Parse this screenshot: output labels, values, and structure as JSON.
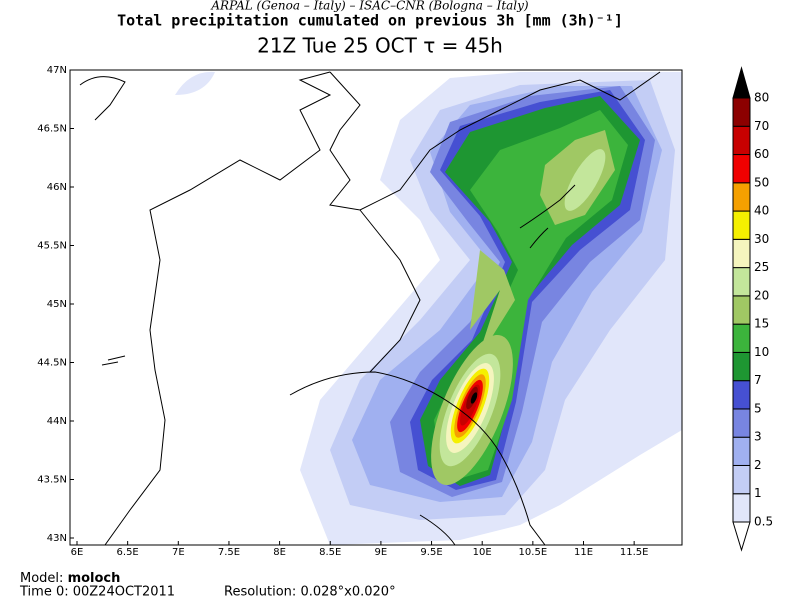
{
  "header": {
    "line1": "ARPAL (Genoa – Italy)  –  ISAC–CNR (Bologna – Italy)",
    "line2": "Total precipitation cumulated on previous 3h [mm (3h)⁻¹]",
    "line3": "21Z Tue 25 OCT  τ = 45h"
  },
  "map": {
    "lon_labels": [
      "6E",
      "6.5E",
      "7E",
      "7.5E",
      "8E",
      "8.5E",
      "9E",
      "9.5E",
      "10E",
      "10.5E",
      "11E",
      "11.5E"
    ],
    "lat_labels": [
      "47N",
      "46.5N",
      "46N",
      "45.5N",
      "45N",
      "44.5N",
      "44N",
      "43.5N",
      "43N"
    ]
  },
  "colorbar": {
    "levels": [
      0.5,
      1,
      2,
      3,
      5,
      7,
      10,
      15,
      20,
      25,
      30,
      40,
      50,
      60,
      70,
      80
    ],
    "colors": [
      "#ffffff",
      "#e1e6fa",
      "#c3cdf5",
      "#a0b0f0",
      "#7885e1",
      "#4650d2",
      "#1e9632",
      "#3cb43c",
      "#a0c864",
      "#c3e69b",
      "#f5f5be",
      "#f5f000",
      "#f5a000",
      "#f00000",
      "#c80000",
      "#8c0000",
      "#000000"
    ]
  },
  "footer": {
    "model_label": "Model:",
    "model": "moloch",
    "time": "Time 0: 00Z24OCT2011",
    "resolution": "Resolution: 0.028°x0.020°"
  }
}
